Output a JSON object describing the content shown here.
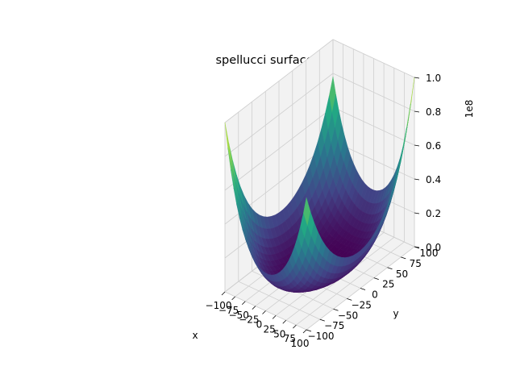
{
  "chart_data": {
    "type": "surface",
    "title": "spellucci surface",
    "xlabel": "x",
    "ylabel": "y",
    "zlabel": "",
    "z_offset_label": "1e8",
    "xlim": [
      -100,
      100
    ],
    "ylim": [
      -100,
      100
    ],
    "zlim": [
      0,
      100000000
    ],
    "x_ticks": [
      "−100",
      "−75",
      "−50",
      "−25",
      "0",
      "25",
      "50",
      "75",
      "100"
    ],
    "y_ticks": [
      "−100",
      "−75",
      "−50",
      "−25",
      "0",
      "25",
      "50",
      "75",
      "100"
    ],
    "z_ticks": [
      "0.0",
      "0.2",
      "0.4",
      "0.6",
      "0.8",
      "1.0"
    ],
    "colormap": "viridis",
    "colormap_stops": [
      "#440154",
      "#414487",
      "#2a788e",
      "#22a884",
      "#7ad151",
      "#fde725"
    ],
    "grid": true,
    "pane_color": "#f2f2f2",
    "corner_values": [
      {
        "x": -100,
        "y": -100,
        "z": 100000000
      },
      {
        "x": 100,
        "y": -100,
        "z": 78000000
      },
      {
        "x": -100,
        "y": 100,
        "z": 78000000
      },
      {
        "x": 100,
        "y": 100,
        "z": 100000000
      }
    ]
  }
}
